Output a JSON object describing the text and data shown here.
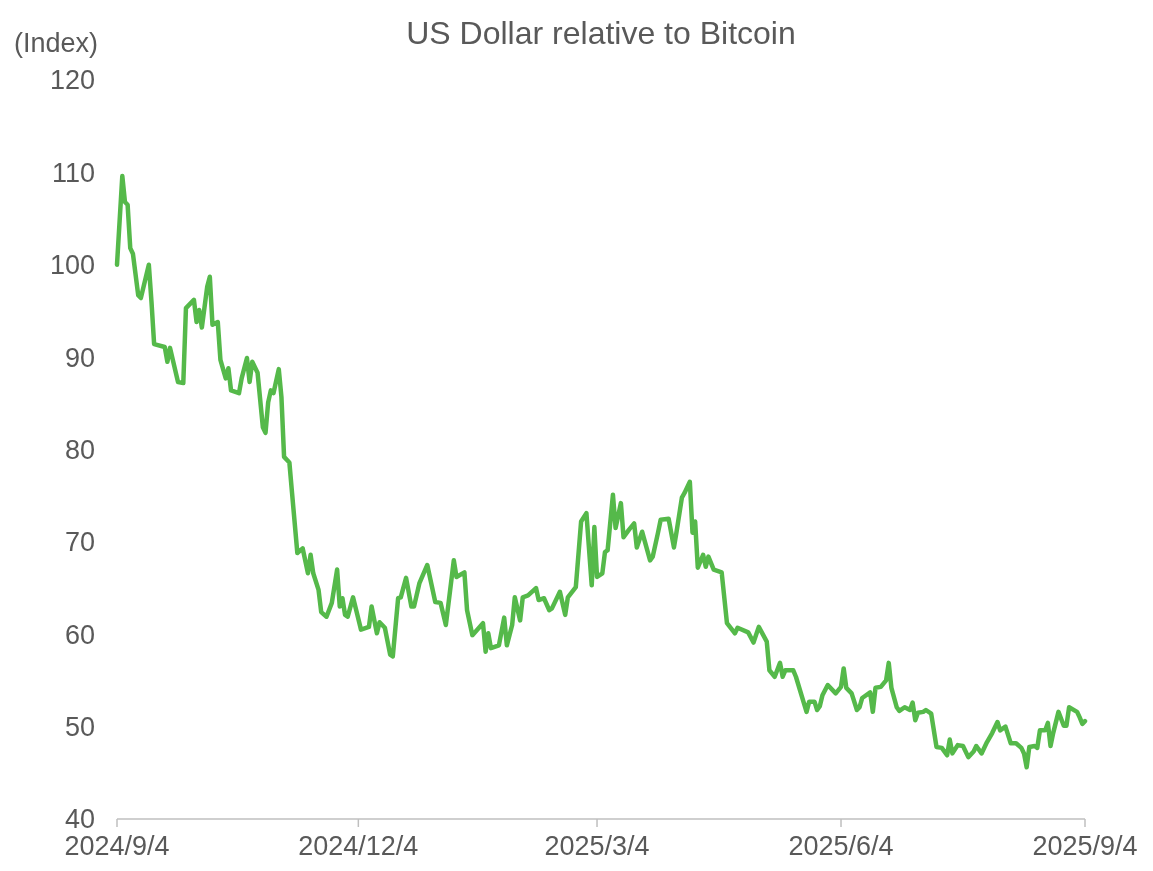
{
  "chart_data": {
    "type": "line",
    "title": "US Dollar relative to Bitcoin",
    "ylabel": "(Index)",
    "xlim": [
      "2024-09-04",
      "2025-09-04"
    ],
    "xticks": [
      {
        "value": "2024-09-04",
        "label": "2024/9/4"
      },
      {
        "value": "2024-12-04",
        "label": "2024/12/4"
      },
      {
        "value": "2025-03-04",
        "label": "2025/3/4"
      },
      {
        "value": "2025-06-04",
        "label": "2025/6/4"
      },
      {
        "value": "2025-09-04",
        "label": "2025/9/4"
      }
    ],
    "ylim": [
      40,
      120
    ],
    "yticks": [
      40,
      50,
      60,
      70,
      80,
      90,
      100,
      110,
      120
    ],
    "grid": false,
    "marker": "none",
    "line_style": "solid",
    "x": [
      "2024-09-04",
      "2024-09-06",
      "2024-09-07",
      "2024-09-08",
      "2024-09-09",
      "2024-09-10",
      "2024-09-12",
      "2024-09-13",
      "2024-09-16",
      "2024-09-17",
      "2024-09-18",
      "2024-09-22",
      "2024-09-23",
      "2024-09-24",
      "2024-09-27",
      "2024-09-29",
      "2024-09-30",
      "2024-10-03",
      "2024-10-04",
      "2024-10-05",
      "2024-10-06",
      "2024-10-08",
      "2024-10-09",
      "2024-10-10",
      "2024-10-12",
      "2024-10-13",
      "2024-10-15",
      "2024-10-16",
      "2024-10-17",
      "2024-10-20",
      "2024-10-21",
      "2024-10-23",
      "2024-10-24",
      "2024-10-25",
      "2024-10-27",
      "2024-10-29",
      "2024-10-30",
      "2024-10-31",
      "2024-11-01",
      "2024-11-02",
      "2024-11-04",
      "2024-11-05",
      "2024-11-06",
      "2024-11-08",
      "2024-11-09",
      "2024-11-11",
      "2024-11-13",
      "2024-11-15",
      "2024-11-16",
      "2024-11-17",
      "2024-11-19",
      "2024-11-20",
      "2024-11-22",
      "2024-11-24",
      "2024-11-26",
      "2024-11-27",
      "2024-11-28",
      "2024-11-29",
      "2024-11-30",
      "2024-12-02",
      "2024-12-05",
      "2024-12-08",
      "2024-12-09",
      "2024-12-11",
      "2024-12-12",
      "2024-12-14",
      "2024-12-16",
      "2024-12-17",
      "2024-12-19",
      "2024-12-20",
      "2024-12-22",
      "2024-12-24",
      "2024-12-25",
      "2024-12-27",
      "2024-12-30",
      "2025-01-02",
      "2025-01-04",
      "2025-01-06",
      "2025-01-09",
      "2025-01-10",
      "2025-01-13",
      "2025-01-14",
      "2025-01-16",
      "2025-01-20",
      "2025-01-21",
      "2025-01-22",
      "2025-01-23",
      "2025-01-26",
      "2025-01-28",
      "2025-01-29",
      "2025-01-31",
      "2025-02-01",
      "2025-02-03",
      "2025-02-04",
      "2025-02-06",
      "2025-02-09",
      "2025-02-10",
      "2025-02-12",
      "2025-02-14",
      "2025-02-15",
      "2025-02-18",
      "2025-02-20",
      "2025-02-21",
      "2025-02-24",
      "2025-02-26",
      "2025-02-28",
      "2025-03-02",
      "2025-03-03",
      "2025-03-04",
      "2025-03-06",
      "2025-03-07",
      "2025-03-08",
      "2025-03-10",
      "2025-03-11",
      "2025-03-13",
      "2025-03-14",
      "2025-03-16",
      "2025-03-18",
      "2025-03-19",
      "2025-03-21",
      "2025-03-24",
      "2025-03-25",
      "2025-03-27",
      "2025-03-28",
      "2025-03-31",
      "2025-04-02",
      "2025-04-03",
      "2025-04-05",
      "2025-04-06",
      "2025-04-08",
      "2025-04-09",
      "2025-04-10",
      "2025-04-11",
      "2025-04-13",
      "2025-04-14",
      "2025-04-15",
      "2025-04-17",
      "2025-04-20",
      "2025-04-22",
      "2025-04-25",
      "2025-04-26",
      "2025-04-30",
      "2025-05-02",
      "2025-05-04",
      "2025-05-07",
      "2025-05-08",
      "2025-05-10",
      "2025-05-12",
      "2025-05-13",
      "2025-05-14",
      "2025-05-17",
      "2025-05-18",
      "2025-05-22",
      "2025-05-23",
      "2025-05-25",
      "2025-05-26",
      "2025-05-27",
      "2025-05-28",
      "2025-05-30",
      "2025-06-02",
      "2025-06-04",
      "2025-06-05",
      "2025-06-06",
      "2025-06-08",
      "2025-06-10",
      "2025-06-11",
      "2025-06-12",
      "2025-06-15",
      "2025-06-16",
      "2025-06-17",
      "2025-06-19",
      "2025-06-21",
      "2025-06-22",
      "2025-06-23",
      "2025-06-25",
      "2025-06-26",
      "2025-06-28",
      "2025-06-30",
      "2025-07-01",
      "2025-07-02",
      "2025-07-03",
      "2025-07-05",
      "2025-07-06",
      "2025-07-08",
      "2025-07-10",
      "2025-07-12",
      "2025-07-14",
      "2025-07-15",
      "2025-07-16",
      "2025-07-18",
      "2025-07-20",
      "2025-07-22",
      "2025-07-24",
      "2025-07-25",
      "2025-07-27",
      "2025-07-29",
      "2025-07-31",
      "2025-08-02",
      "2025-08-03",
      "2025-08-05",
      "2025-08-07",
      "2025-08-09",
      "2025-08-11",
      "2025-08-12",
      "2025-08-13",
      "2025-08-14",
      "2025-08-16",
      "2025-08-17",
      "2025-08-18",
      "2025-08-20",
      "2025-08-21",
      "2025-08-22",
      "2025-08-23",
      "2025-08-25",
      "2025-08-27",
      "2025-08-28",
      "2025-08-29",
      "2025-09-01",
      "2025-09-02",
      "2025-09-03",
      "2025-09-04"
    ],
    "series": [
      {
        "color": "#55b94a",
        "values": [
          100.0,
          109.6,
          106.8,
          106.5,
          101.8,
          101.2,
          96.7,
          96.4,
          100.0,
          96.0,
          91.4,
          91.1,
          89.5,
          91.0,
          87.3,
          87.2,
          95.3,
          96.2,
          93.8,
          95.1,
          93.2,
          97.6,
          98.7,
          93.5,
          93.8,
          89.7,
          87.7,
          88.8,
          86.4,
          86.1,
          87.7,
          89.9,
          87.3,
          89.5,
          88.3,
          82.4,
          81.8,
          85.1,
          86.4,
          86.1,
          88.7,
          85.7,
          79.2,
          78.6,
          75.3,
          68.8,
          69.3,
          66.6,
          68.6,
          66.6,
          64.8,
          62.4,
          61.9,
          63.4,
          67.0,
          63.0,
          63.9,
          62.1,
          61.9,
          64.0,
          60.5,
          60.8,
          63.0,
          60.1,
          61.3,
          60.7,
          57.8,
          57.6,
          63.9,
          64.0,
          66.1,
          63.0,
          63.0,
          65.5,
          67.5,
          63.5,
          63.4,
          61.0,
          68.0,
          66.2,
          66.7,
          62.6,
          59.9,
          61.2,
          58.1,
          60.1,
          58.5,
          58.8,
          61.8,
          58.8,
          61.0,
          64.0,
          61.5,
          64.0,
          64.2,
          65.0,
          63.7,
          63.9,
          62.6,
          62.8,
          64.6,
          62.1,
          64.0,
          65.1,
          72.2,
          73.1,
          65.3,
          71.6,
          66.2,
          66.6,
          68.9,
          69.1,
          75.1,
          71.5,
          74.2,
          70.5,
          71.3,
          72.0,
          69.4,
          71.1,
          68.0,
          68.4,
          71.0,
          72.4,
          72.5,
          69.4,
          71.1,
          74.8,
          75.3,
          76.5,
          71.0,
          72.2,
          67.2,
          68.6,
          67.3,
          68.4,
          67.0,
          66.7,
          61.2,
          60.1,
          60.7,
          60.2,
          59.1,
          60.8,
          59.2,
          56.1,
          55.4,
          56.9,
          55.4,
          56.1,
          56.1,
          55.4,
          51.6,
          52.7,
          52.7,
          51.8,
          52.2,
          53.4,
          54.5,
          53.6,
          54.3,
          56.3,
          54.2,
          53.6,
          51.8,
          52.1,
          53.1,
          53.7,
          51.6,
          54.2,
          54.3,
          55.0,
          56.9,
          54.2,
          52.1,
          51.7,
          52.1,
          51.8,
          52.6,
          50.7,
          51.5,
          51.6,
          51.8,
          51.4,
          47.8,
          47.7,
          46.9,
          48.6,
          47.1,
          48.0,
          47.9,
          46.7,
          47.3,
          47.9,
          47.1,
          48.3,
          49.3,
          50.5,
          49.6,
          50.0,
          48.2,
          48.2,
          47.7,
          47.1,
          45.6,
          47.8,
          47.9,
          47.7,
          49.6,
          49.6,
          50.4,
          47.9,
          49.3,
          51.6,
          50.1,
          50.1,
          52.1,
          51.6,
          51.0,
          50.3,
          50.6
        ]
      }
    ]
  }
}
